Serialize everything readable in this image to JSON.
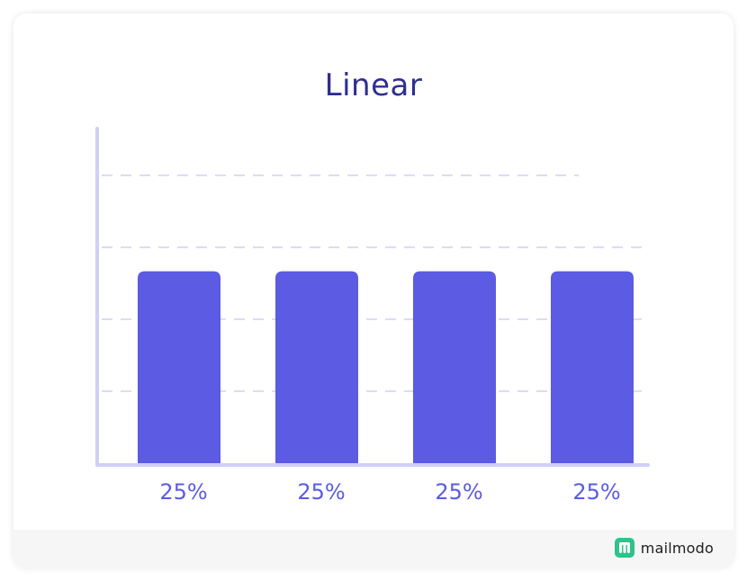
{
  "chart_data": {
    "type": "bar",
    "title": "Linear",
    "categories": [
      "25%",
      "25%",
      "25%",
      "25%"
    ],
    "values": [
      25,
      25,
      25,
      25
    ],
    "xlabel": "",
    "ylabel": "",
    "ylim": [
      0,
      37.5
    ],
    "grid": true,
    "colors": {
      "bar": "#5b5be3",
      "axis": "#cfcff8",
      "grid": "#dcdcf2",
      "label": "#5b5be3",
      "title": "#2e2f8f"
    }
  },
  "footer": {
    "brand_name": "mailmodo",
    "brand_icon": "mailmodo-logo-icon",
    "brand_color": "#2bc48a"
  }
}
